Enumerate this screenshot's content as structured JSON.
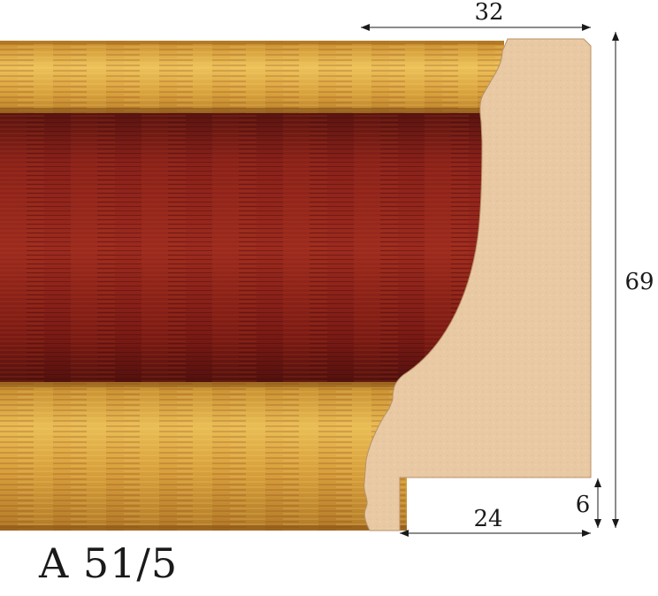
{
  "product": {
    "code": "A 51/5"
  },
  "dimensions": {
    "top_width": "32",
    "height": "69",
    "rebate_width": "24",
    "rebate_height": "6"
  },
  "colors": {
    "gold_light": "#e3b24a",
    "gold_dark": "#b07a23",
    "red_main": "#8e1e1a",
    "red_dark": "#5e1210",
    "wood_profile": "#e8c9a3",
    "dimension_lines": "#1a1a1a"
  }
}
